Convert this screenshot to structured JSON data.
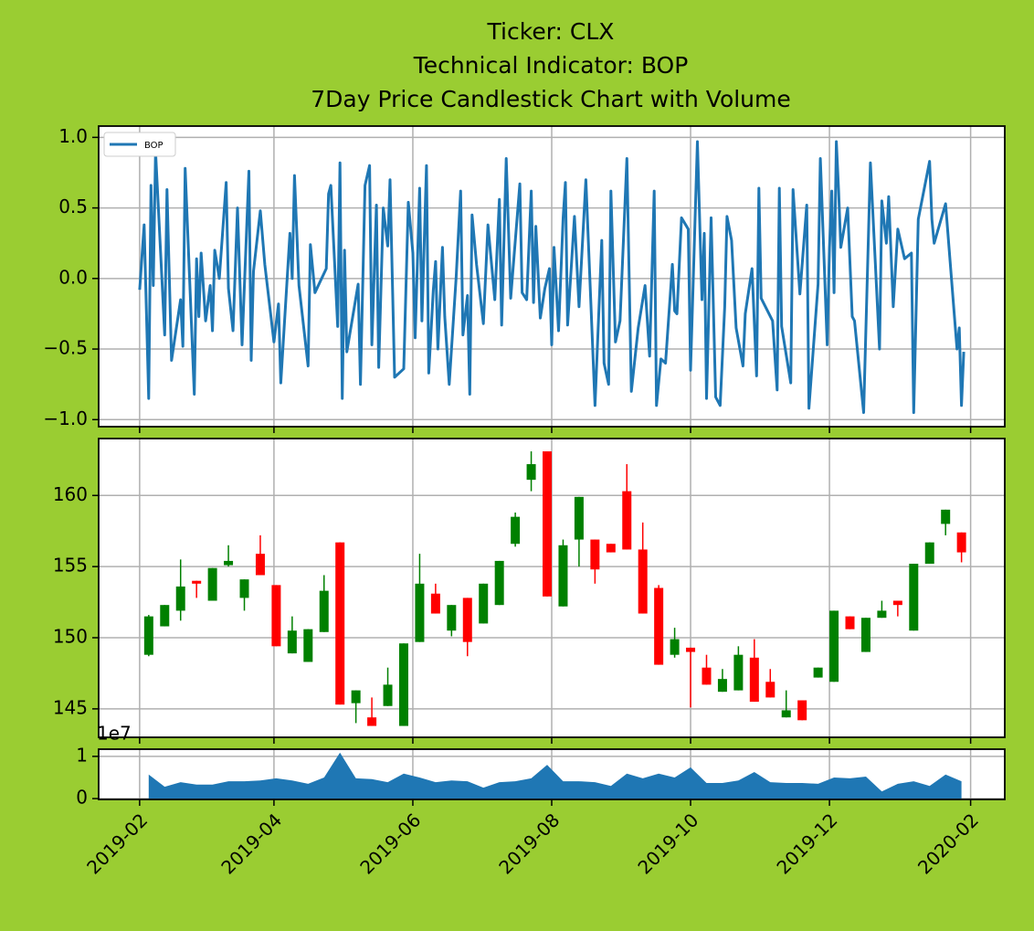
{
  "chart_data": [
    {
      "type": "line",
      "title": [
        "Ticker: CLX",
        "Technical Indicator: BOP",
        "7Day Price Candlestick Chart with Volume"
      ],
      "legend": "upper left",
      "grid": true,
      "xlim": [
        "2019-01-14",
        "2020-02-16"
      ],
      "ylim": [
        -1.05,
        1.08
      ],
      "yticks": [
        {
          "value": -1,
          "label": "−1.0"
        },
        {
          "value": -0.5,
          "label": "−0.5"
        },
        {
          "value": 0,
          "label": "0.0"
        },
        {
          "value": 0.5,
          "label": "0.5"
        },
        {
          "value": 1,
          "label": "1.0"
        }
      ],
      "x": [
        "2019-02-01",
        "2019-02-03",
        "2019-02-05",
        "2019-02-06",
        "2019-02-07",
        "2019-02-08",
        "2019-02-12",
        "2019-02-13",
        "2019-02-15",
        "2019-02-19",
        "2019-02-20",
        "2019-02-21",
        "2019-02-25",
        "2019-02-26",
        "2019-02-27",
        "2019-02-28",
        "2019-03-02",
        "2019-03-04",
        "2019-03-05",
        "2019-03-06",
        "2019-03-08",
        "2019-03-11",
        "2019-03-12",
        "2019-03-14",
        "2019-03-16",
        "2019-03-18",
        "2019-03-21",
        "2019-03-22",
        "2019-03-23",
        "2019-03-26",
        "2019-03-28",
        "2019-04-01",
        "2019-04-03",
        "2019-04-04",
        "2019-04-08",
        "2019-04-09",
        "2019-04-10",
        "2019-04-12",
        "2019-04-16",
        "2019-04-17",
        "2019-04-19",
        "2019-04-24",
        "2019-04-25",
        "2019-04-26",
        "2019-04-29",
        "2019-04-30",
        "2019-05-01",
        "2019-05-02",
        "2019-05-03",
        "2019-05-08",
        "2019-05-09",
        "2019-05-11",
        "2019-05-13",
        "2019-05-14",
        "2019-05-16",
        "2019-05-17",
        "2019-05-19",
        "2019-05-21",
        "2019-05-22",
        "2019-05-24",
        "2019-05-28",
        "2019-05-30",
        "2019-06-01",
        "2019-06-02",
        "2019-06-04",
        "2019-06-05",
        "2019-06-07",
        "2019-06-08",
        "2019-06-10",
        "2019-06-11",
        "2019-06-12",
        "2019-06-14",
        "2019-06-15",
        "2019-06-17",
        "2019-06-20",
        "2019-06-22",
        "2019-06-23",
        "2019-06-25",
        "2019-06-26",
        "2019-06-27",
        "2019-06-29",
        "2019-07-02",
        "2019-07-04",
        "2019-07-07",
        "2019-07-09",
        "2019-07-10",
        "2019-07-12",
        "2019-07-14",
        "2019-07-18",
        "2019-07-19",
        "2019-07-21",
        "2019-07-23",
        "2019-07-24",
        "2019-07-25",
        "2019-07-27",
        "2019-07-29",
        "2019-07-31",
        "2019-08-01",
        "2019-08-02",
        "2019-08-04",
        "2019-08-06",
        "2019-08-07",
        "2019-08-08",
        "2019-08-11",
        "2019-08-13",
        "2019-08-16",
        "2019-08-20",
        "2019-08-23",
        "2019-08-24",
        "2019-08-26",
        "2019-08-27",
        "2019-08-29",
        "2019-08-31",
        "2019-09-03",
        "2019-09-05",
        "2019-09-08",
        "2019-09-11",
        "2019-09-13",
        "2019-09-15",
        "2019-09-16",
        "2019-09-18",
        "2019-09-20",
        "2019-09-23",
        "2019-09-24",
        "2019-09-25",
        "2019-09-27",
        "2019-09-30",
        "2019-10-01",
        "2019-10-04",
        "2019-10-06",
        "2019-10-07",
        "2019-10-08",
        "2019-10-10",
        "2019-10-12",
        "2019-10-14",
        "2019-10-16",
        "2019-10-17",
        "2019-10-19",
        "2019-10-21",
        "2019-10-24",
        "2019-10-25",
        "2019-10-28",
        "2019-10-30",
        "2019-10-31",
        "2019-11-01",
        "2019-11-06",
        "2019-11-08",
        "2019-11-09",
        "2019-11-10",
        "2019-11-14",
        "2019-11-15",
        "2019-11-18",
        "2019-11-21",
        "2019-11-22",
        "2019-11-26",
        "2019-11-27",
        "2019-11-30",
        "2019-12-01",
        "2019-12-02",
        "2019-12-03",
        "2019-12-04",
        "2019-12-05",
        "2019-12-06",
        "2019-12-09",
        "2019-12-11",
        "2019-12-12",
        "2019-12-16",
        "2019-12-19",
        "2019-12-23",
        "2019-12-24",
        "2019-12-26",
        "2019-12-27",
        "2019-12-29",
        "2019-12-31",
        "2020-01-03",
        "2020-01-06",
        "2020-01-07",
        "2020-01-09",
        "2020-01-14",
        "2020-01-15",
        "2020-01-16",
        "2020-01-21",
        "2020-01-26",
        "2020-01-27",
        "2020-01-28",
        "2020-01-29"
      ],
      "series": [
        {
          "name": "BOP",
          "color": "#1f77b4",
          "values": [
            -0.08,
            0.38,
            -0.85,
            0.66,
            -0.05,
            0.9,
            -0.4,
            0.63,
            -0.58,
            -0.15,
            -0.48,
            0.78,
            -0.82,
            0.14,
            -0.27,
            0.18,
            -0.3,
            -0.05,
            -0.37,
            0.2,
            0.0,
            0.68,
            -0.07,
            -0.37,
            0.5,
            -0.47,
            0.76,
            -0.58,
            0.05,
            0.48,
            0.1,
            -0.45,
            -0.18,
            -0.74,
            0.32,
            0.0,
            0.73,
            -0.05,
            -0.62,
            0.24,
            -0.1,
            0.07,
            0.6,
            0.66,
            -0.34,
            0.82,
            -0.85,
            0.2,
            -0.52,
            -0.04,
            -0.75,
            0.66,
            0.8,
            -0.47,
            0.52,
            -0.63,
            0.5,
            0.23,
            0.7,
            -0.7,
            -0.64,
            0.54,
            0.18,
            -0.42,
            0.64,
            -0.3,
            0.8,
            -0.67,
            -0.08,
            0.12,
            -0.5,
            0.22,
            -0.27,
            -0.75,
            0.0,
            0.62,
            -0.4,
            -0.12,
            -0.82,
            0.45,
            0.1,
            -0.32,
            0.38,
            -0.15,
            0.56,
            -0.33,
            0.85,
            -0.14,
            0.67,
            -0.1,
            -0.15,
            0.62,
            -0.17,
            0.37,
            -0.28,
            -0.07,
            0.07,
            -0.47,
            0.22,
            -0.37,
            0.43,
            0.68,
            -0.33,
            0.44,
            -0.2,
            0.7,
            -0.9,
            0.27,
            -0.6,
            -0.75,
            0.62,
            -0.45,
            -0.3,
            0.85,
            -0.8,
            -0.35,
            -0.05,
            -0.55,
            0.62,
            -0.9,
            -0.57,
            -0.6,
            0.1,
            -0.23,
            -0.25,
            0.43,
            0.35,
            -0.65,
            0.97,
            -0.15,
            0.32,
            -0.85,
            0.43,
            -0.84,
            -0.9,
            -0.2,
            0.44,
            0.27,
            -0.35,
            -0.62,
            -0.25,
            0.07,
            -0.69,
            0.64,
            -0.14,
            -0.3,
            -0.79,
            0.64,
            -0.34,
            -0.74,
            0.63,
            -0.11,
            0.52,
            -0.92,
            -0.04,
            0.85,
            -0.47,
            0.22,
            0.62,
            -0.1,
            0.97,
            0.62,
            0.22,
            0.5,
            -0.27,
            -0.3,
            -0.95,
            0.82,
            -0.5,
            0.55,
            0.25,
            0.58,
            -0.2,
            0.35,
            0.14,
            0.18,
            -0.95,
            0.42,
            0.83,
            0.42,
            0.25,
            0.53,
            -0.5,
            -0.35,
            -0.9,
            -0.52
          ]
        }
      ]
    },
    {
      "type": "candlestick",
      "grid": true,
      "xlim": [
        "2019-01-14",
        "2020-02-16"
      ],
      "ylim": [
        143,
        164
      ],
      "yticks": [
        145,
        150,
        155,
        160
      ],
      "up_color": "green",
      "down_color": "red",
      "x": [
        "2019-02-05",
        "2019-02-12",
        "2019-02-19",
        "2019-02-26",
        "2019-03-05",
        "2019-03-12",
        "2019-03-19",
        "2019-03-26",
        "2019-04-02",
        "2019-04-09",
        "2019-04-16",
        "2019-04-23",
        "2019-04-30",
        "2019-05-07",
        "2019-05-14",
        "2019-05-21",
        "2019-05-28",
        "2019-06-04",
        "2019-06-11",
        "2019-06-18",
        "2019-06-25",
        "2019-07-02",
        "2019-07-09",
        "2019-07-16",
        "2019-07-23",
        "2019-07-30",
        "2019-08-06",
        "2019-08-13",
        "2019-08-20",
        "2019-08-27",
        "2019-09-03",
        "2019-09-10",
        "2019-09-17",
        "2019-09-24",
        "2019-10-01",
        "2019-10-08",
        "2019-10-15",
        "2019-10-22",
        "2019-10-29",
        "2019-11-05",
        "2019-11-12",
        "2019-11-19",
        "2019-11-26",
        "2019-12-03",
        "2019-12-10",
        "2019-12-17",
        "2019-12-24",
        "2019-12-31",
        "2020-01-07",
        "2020-01-14",
        "2020-01-21",
        "2020-01-28"
      ],
      "open": [
        148.8,
        150.8,
        151.9,
        154.0,
        152.6,
        155.1,
        152.8,
        155.9,
        153.7,
        148.9,
        148.3,
        150.4,
        156.7,
        145.4,
        144.4,
        145.2,
        143.8,
        149.7,
        153.1,
        150.5,
        152.8,
        151.0,
        152.3,
        156.6,
        161.1,
        163.1,
        152.2,
        156.9,
        156.9,
        156.6,
        160.3,
        156.2,
        153.5,
        148.8,
        149.3,
        147.9,
        146.2,
        146.3,
        148.6,
        146.9,
        144.4,
        145.6,
        147.2,
        146.9,
        151.5,
        149.0,
        151.4,
        152.6,
        150.5,
        155.2,
        158.0,
        157.4
      ],
      "high": [
        151.6,
        152.3,
        155.5,
        154.0,
        154.9,
        156.5,
        154.1,
        157.2,
        153.7,
        151.5,
        150.6,
        154.4,
        156.7,
        146.3,
        145.8,
        147.9,
        149.6,
        155.9,
        153.8,
        152.3,
        152.8,
        153.8,
        155.4,
        158.8,
        163.1,
        163.1,
        156.9,
        159.9,
        156.9,
        156.6,
        162.2,
        158.1,
        153.7,
        150.7,
        149.3,
        148.8,
        147.8,
        149.4,
        149.9,
        147.8,
        146.3,
        145.6,
        147.9,
        151.9,
        151.5,
        151.4,
        152.6,
        152.6,
        155.2,
        156.7,
        159.0,
        157.4
      ],
      "low": [
        148.7,
        150.8,
        151.2,
        152.8,
        152.6,
        155.0,
        151.9,
        154.4,
        149.4,
        148.9,
        148.3,
        150.4,
        145.3,
        144.0,
        143.8,
        145.2,
        143.8,
        149.7,
        151.7,
        150.1,
        148.7,
        151.0,
        152.3,
        156.4,
        160.3,
        152.9,
        152.2,
        155.0,
        153.8,
        156.0,
        156.2,
        151.7,
        148.1,
        148.6,
        145.1,
        146.7,
        146.2,
        146.3,
        145.5,
        145.8,
        144.4,
        144.2,
        147.2,
        146.9,
        150.6,
        149.0,
        151.4,
        151.5,
        150.5,
        155.2,
        157.2,
        155.3
      ],
      "close": [
        151.5,
        152.3,
        153.6,
        153.8,
        154.9,
        155.4,
        154.1,
        154.4,
        149.4,
        150.5,
        150.6,
        153.3,
        145.3,
        146.3,
        143.8,
        146.7,
        149.6,
        153.8,
        151.7,
        152.3,
        149.7,
        153.8,
        155.4,
        158.5,
        162.2,
        152.9,
        156.5,
        159.9,
        154.8,
        156.0,
        156.2,
        151.7,
        148.1,
        149.9,
        149.0,
        146.7,
        147.1,
        148.8,
        145.5,
        145.8,
        144.9,
        144.2,
        147.9,
        151.9,
        150.6,
        151.4,
        151.9,
        152.3,
        155.2,
        156.7,
        159.0,
        156.0
      ]
    },
    {
      "type": "area",
      "grid": true,
      "color": "#1f77b4",
      "xlim": [
        "2019-01-14",
        "2020-02-16"
      ],
      "xticks": [
        {
          "value": "2019-02-01",
          "label": "2019-02"
        },
        {
          "value": "2019-04-01",
          "label": "2019-04"
        },
        {
          "value": "2019-06-01",
          "label": "2019-06"
        },
        {
          "value": "2019-08-01",
          "label": "2019-08"
        },
        {
          "value": "2019-10-01",
          "label": "2019-10"
        },
        {
          "value": "2019-12-01",
          "label": "2019-12"
        },
        {
          "value": "2020-02-01",
          "label": "2020-02"
        }
      ],
      "ylim": [
        -0.02,
        1.17
      ],
      "yticks": [
        0,
        1
      ],
      "offset_label": "1e7",
      "x": [
        "2019-02-05",
        "2019-02-12",
        "2019-02-19",
        "2019-02-26",
        "2019-03-05",
        "2019-03-12",
        "2019-03-19",
        "2019-03-26",
        "2019-04-02",
        "2019-04-09",
        "2019-04-16",
        "2019-04-23",
        "2019-04-30",
        "2019-05-07",
        "2019-05-14",
        "2019-05-21",
        "2019-05-28",
        "2019-06-04",
        "2019-06-11",
        "2019-06-18",
        "2019-06-25",
        "2019-07-02",
        "2019-07-09",
        "2019-07-16",
        "2019-07-23",
        "2019-07-30",
        "2019-08-06",
        "2019-08-13",
        "2019-08-20",
        "2019-08-27",
        "2019-09-03",
        "2019-09-10",
        "2019-09-17",
        "2019-09-24",
        "2019-10-01",
        "2019-10-08",
        "2019-10-15",
        "2019-10-22",
        "2019-10-29",
        "2019-11-05",
        "2019-11-12",
        "2019-11-19",
        "2019-11-26",
        "2019-12-03",
        "2019-12-10",
        "2019-12-17",
        "2019-12-24",
        "2019-12-31",
        "2020-01-07",
        "2020-01-14",
        "2020-01-21",
        "2020-01-28"
      ],
      "values": [
        0.57,
        0.28,
        0.39,
        0.33,
        0.33,
        0.41,
        0.41,
        0.43,
        0.48,
        0.43,
        0.35,
        0.5,
        1.09,
        0.48,
        0.46,
        0.39,
        0.59,
        0.5,
        0.39,
        0.43,
        0.41,
        0.26,
        0.39,
        0.41,
        0.48,
        0.8,
        0.41,
        0.41,
        0.39,
        0.3,
        0.59,
        0.48,
        0.59,
        0.5,
        0.74,
        0.37,
        0.37,
        0.43,
        0.63,
        0.39,
        0.37,
        0.37,
        0.35,
        0.5,
        0.48,
        0.52,
        0.17,
        0.35,
        0.41,
        0.3,
        0.57,
        0.41
      ]
    }
  ]
}
